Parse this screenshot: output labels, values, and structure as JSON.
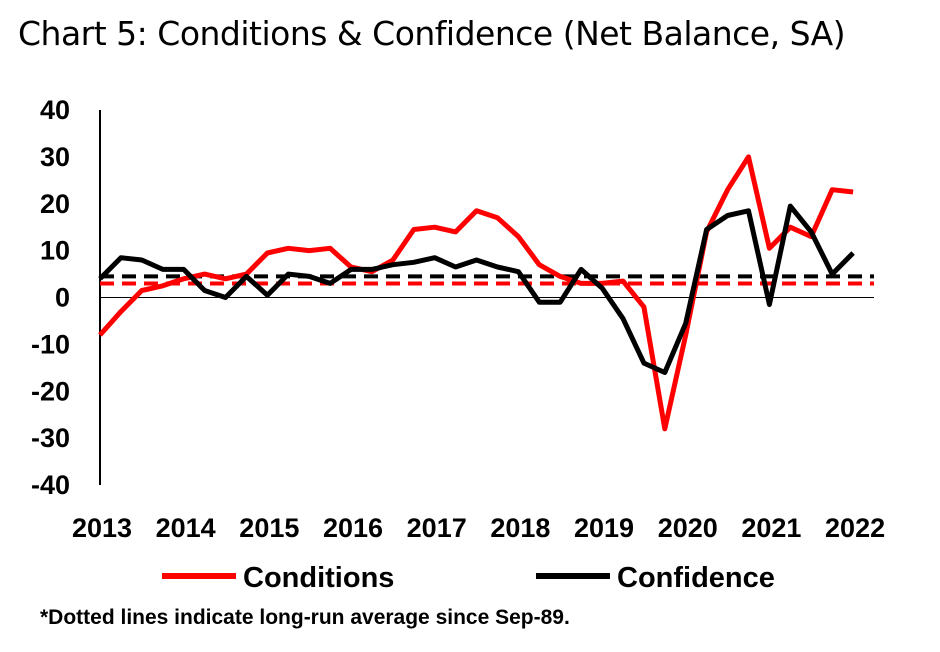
{
  "chart_data": {
    "type": "line",
    "title": "Chart 5: Conditions & Confidence (Net Balance, SA)",
    "ylim": [
      -40,
      40
    ],
    "yticks": [
      -40,
      -30,
      -20,
      -10,
      0,
      10,
      20,
      30,
      40
    ],
    "xlim": [
      2013,
      2022.25
    ],
    "xticks": [
      2013,
      2014,
      2015,
      2016,
      2017,
      2018,
      2019,
      2020,
      2021,
      2022
    ],
    "series": [
      {
        "name": "Conditions",
        "color": "#ff0000",
        "x": [
          2013.0,
          2013.25,
          2013.5,
          2013.75,
          2014.0,
          2014.25,
          2014.5,
          2014.75,
          2015.0,
          2015.25,
          2015.5,
          2015.75,
          2016.0,
          2016.25,
          2016.5,
          2016.75,
          2017.0,
          2017.25,
          2017.5,
          2017.75,
          2018.0,
          2018.25,
          2018.5,
          2018.75,
          2019.0,
          2019.25,
          2019.5,
          2019.75,
          2020.0,
          2020.25,
          2020.5,
          2020.75,
          2021.0,
          2021.25,
          2021.5,
          2021.75,
          2022.0
        ],
        "values": [
          -8,
          -3,
          1.5,
          2.5,
          4,
          5,
          4,
          5,
          9.5,
          10.5,
          10,
          10.5,
          6.5,
          5.5,
          8,
          14.5,
          15,
          14,
          18.5,
          17,
          13,
          7,
          4.5,
          3,
          3,
          3.5,
          -2,
          -28,
          -8,
          14,
          23,
          30,
          10.5,
          15,
          13,
          23,
          22.5
        ]
      },
      {
        "name": "Confidence",
        "color": "#000000",
        "x": [
          2013.0,
          2013.25,
          2013.5,
          2013.75,
          2014.0,
          2014.25,
          2014.5,
          2014.75,
          2015.0,
          2015.25,
          2015.5,
          2015.75,
          2016.0,
          2016.25,
          2016.5,
          2016.75,
          2017.0,
          2017.25,
          2017.5,
          2017.75,
          2018.0,
          2018.25,
          2018.5,
          2018.75,
          2019.0,
          2019.25,
          2019.5,
          2019.75,
          2020.0,
          2020.25,
          2020.5,
          2020.75,
          2021.0,
          2021.25,
          2021.5,
          2021.75,
          2022.0
        ],
        "values": [
          4,
          8.5,
          8,
          6,
          6,
          1.5,
          0,
          4.5,
          0.5,
          5,
          4.5,
          3,
          6,
          6,
          7,
          7.5,
          8.5,
          6.5,
          8,
          6.5,
          5.5,
          -1,
          -1,
          6,
          2,
          -4.5,
          -14,
          -16,
          -5.5,
          14.5,
          17.5,
          18.5,
          -1.5,
          19.5,
          14,
          5,
          9.5
        ]
      }
    ],
    "averages": [
      {
        "series": "Conditions",
        "value": 3,
        "color": "#ff0000",
        "style": "dashed"
      },
      {
        "series": "Confidence",
        "value": 4.5,
        "color": "#000000",
        "style": "dashed"
      }
    ],
    "legend": {
      "placement": "bottom",
      "entries": [
        "Conditions",
        "Confidence"
      ]
    },
    "note": "*Dotted lines indicate long-run average since Sep-89.",
    "grid": false
  }
}
